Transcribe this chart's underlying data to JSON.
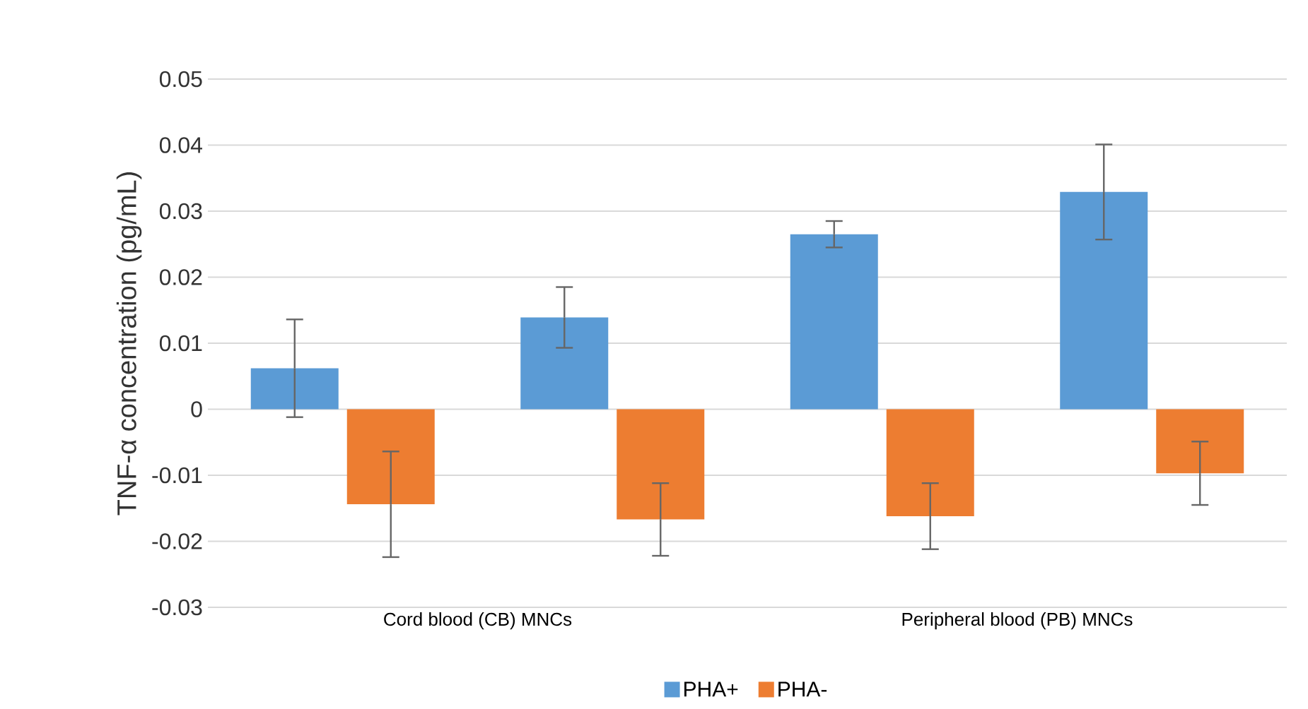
{
  "chart_data": {
    "type": "bar",
    "ylabel": "TNF-α concentration (pg/mL)",
    "categories": [
      null,
      null,
      null,
      null
    ],
    "series": [
      {
        "name": "PHA+",
        "color": "#5b9bd5",
        "values": [
          0.0062,
          0.0139,
          0.0265,
          0.0329
        ],
        "errors": [
          0.0074,
          0.0046,
          0.002,
          0.0072
        ]
      },
      {
        "name": "PHA-",
        "color": "#ed7d31",
        "values": [
          -0.0144,
          -0.0167,
          -0.0162,
          -0.0097
        ],
        "errors": [
          0.008,
          0.0055,
          0.005,
          0.0048
        ]
      }
    ],
    "annotations": [
      "Cord blood (CB) MNCs",
      "Peripheral blood (PB) MNCs"
    ],
    "ylim": [
      -0.03,
      0.05
    ],
    "yticks": [
      -0.03,
      -0.02,
      -0.01,
      0,
      0.01,
      0.02,
      0.03,
      0.04,
      0.05
    ],
    "grid": "y",
    "legend": "bottom"
  }
}
